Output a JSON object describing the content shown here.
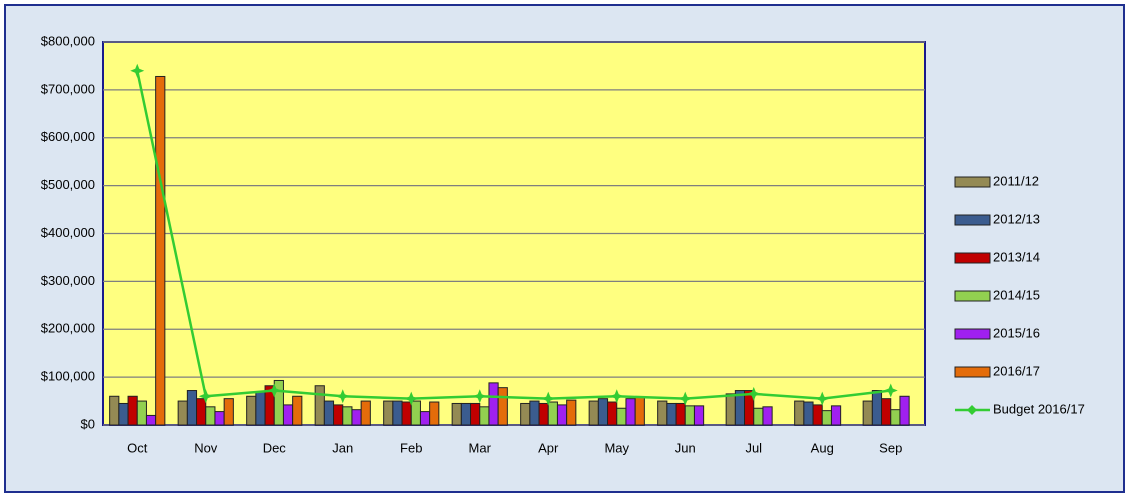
{
  "chart_data": {
    "type": "bar",
    "categories": [
      "Oct",
      "Nov",
      "Dec",
      "Jan",
      "Feb",
      "Mar",
      "Apr",
      "May",
      "Jun",
      "Jul",
      "Aug",
      "Sep"
    ],
    "series": [
      {
        "name": "2011/12",
        "color": "#948a54",
        "values": [
          60000,
          50000,
          60000,
          82000,
          50000,
          45000,
          45000,
          50000,
          50000,
          65000,
          50000,
          50000
        ]
      },
      {
        "name": "2012/13",
        "color": "#3b5c8f",
        "values": [
          45000,
          72000,
          70000,
          50000,
          50000,
          45000,
          50000,
          55000,
          45000,
          72000,
          48000,
          72000
        ]
      },
      {
        "name": "2013/14",
        "color": "#c00000",
        "values": [
          60000,
          55000,
          82000,
          42000,
          48000,
          45000,
          45000,
          48000,
          45000,
          72000,
          42000,
          55000
        ]
      },
      {
        "name": "2014/15",
        "color": "#92d050",
        "values": [
          50000,
          38000,
          93000,
          38000,
          50000,
          38000,
          48000,
          35000,
          40000,
          35000,
          30000,
          32000
        ]
      },
      {
        "name": "2015/16",
        "color": "#a020f0",
        "values": [
          20000,
          28000,
          42000,
          32000,
          28000,
          88000,
          42000,
          55000,
          40000,
          38000,
          40000,
          60000
        ]
      },
      {
        "name": "2016/17",
        "color": "#e46c0a",
        "values": [
          728000,
          55000,
          60000,
          50000,
          48000,
          78000,
          52000,
          58000,
          null,
          null,
          null,
          null
        ]
      },
      {
        "name": "Budget 2016/17",
        "color": "#33cc33",
        "type": "line",
        "values": [
          740000,
          60000,
          72000,
          60000,
          55000,
          60000,
          55000,
          60000,
          55000,
          65000,
          55000,
          72000
        ]
      }
    ],
    "ylim": [
      0,
      800000
    ],
    "yticks": [
      {
        "value": 0,
        "label": "$0"
      },
      {
        "value": 100000,
        "label": "$100,000"
      },
      {
        "value": 200000,
        "label": "$200,000"
      },
      {
        "value": 300000,
        "label": "$300,000"
      },
      {
        "value": 400000,
        "label": "$400,000"
      },
      {
        "value": 500000,
        "label": "$500,000"
      },
      {
        "value": 600000,
        "label": "$600,000"
      },
      {
        "value": 700000,
        "label": "$700,000"
      },
      {
        "value": 800000,
        "label": "$800,000"
      }
    ],
    "grid": true,
    "legend": "right"
  }
}
